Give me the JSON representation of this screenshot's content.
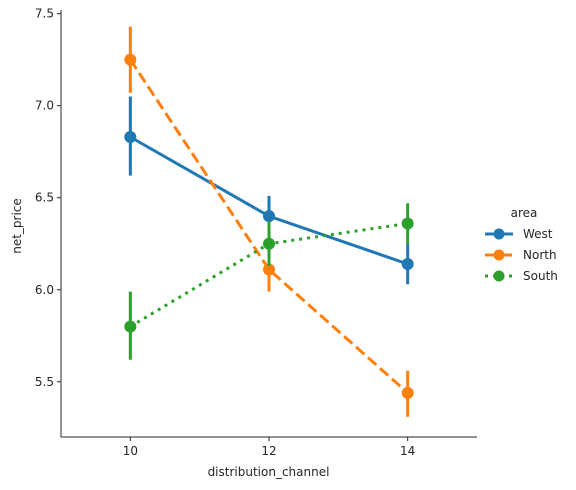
{
  "chart_data": {
    "type": "line",
    "xlabel": "distribution_channel",
    "ylabel": "net_price",
    "categories": [
      "10",
      "12",
      "14"
    ],
    "ylim": [
      5.2,
      7.52
    ],
    "yticks": [
      5.5,
      6.0,
      6.5,
      7.0,
      7.5
    ],
    "y_tick_labels": [
      "5.5",
      "6.0",
      "6.5",
      "7.0",
      "7.5"
    ],
    "grid": false,
    "legend": {
      "title": "area",
      "position": "right"
    },
    "series": [
      {
        "name": "West",
        "color": "#1f77b4",
        "linestyle": "solid",
        "values": [
          6.83,
          6.4,
          6.14
        ],
        "ci_low": [
          6.62,
          6.29,
          6.03
        ],
        "ci_high": [
          7.05,
          6.51,
          6.25
        ]
      },
      {
        "name": "North",
        "color": "#ff7f0e",
        "linestyle": "dashed",
        "values": [
          7.25,
          6.11,
          5.44
        ],
        "ci_low": [
          7.07,
          5.99,
          5.31
        ],
        "ci_high": [
          7.43,
          6.23,
          5.56
        ]
      },
      {
        "name": "South",
        "color": "#2ca02c",
        "linestyle": "dotted",
        "values": [
          5.8,
          6.25,
          6.36
        ],
        "ci_low": [
          5.62,
          6.13,
          6.25
        ],
        "ci_high": [
          5.99,
          6.37,
          6.47
        ]
      }
    ]
  }
}
